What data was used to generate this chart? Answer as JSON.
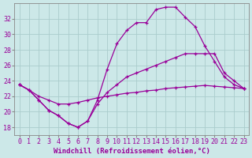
{
  "xlabel": "Windchill (Refroidissement éolien,°C)",
  "bg_color": "#cce8e8",
  "grid_color": "#aacccc",
  "line_color": "#990099",
  "x_hours": [
    0,
    1,
    2,
    3,
    4,
    5,
    6,
    7,
    8,
    9,
    10,
    11,
    12,
    13,
    14,
    15,
    16,
    17,
    18,
    19,
    20,
    21,
    22,
    23
  ],
  "curve1": [
    23.5,
    22.8,
    22.0,
    21.5,
    21.0,
    21.0,
    21.2,
    21.5,
    21.8,
    22.0,
    22.2,
    22.4,
    22.5,
    22.7,
    22.8,
    23.0,
    23.1,
    23.2,
    23.3,
    23.4,
    23.3,
    23.2,
    23.1,
    23.0
  ],
  "curve2": [
    23.5,
    22.8,
    21.5,
    20.2,
    19.5,
    18.5,
    18.0,
    18.8,
    21.5,
    25.5,
    28.8,
    30.5,
    31.5,
    31.5,
    33.2,
    33.5,
    33.5,
    32.2,
    31.0,
    28.5,
    26.5,
    24.5,
    23.5,
    23.0
  ],
  "curve3": [
    23.5,
    22.8,
    21.5,
    20.2,
    19.5,
    18.5,
    18.0,
    18.8,
    21.0,
    22.5,
    23.5,
    24.5,
    25.0,
    25.5,
    26.0,
    26.5,
    27.0,
    27.5,
    27.5,
    27.5,
    27.5,
    25.0,
    24.0,
    23.0
  ],
  "ylim": [
    17,
    34
  ],
  "yticks": [
    18,
    20,
    22,
    24,
    26,
    28,
    30,
    32
  ],
  "label_fontsize": 6.5,
  "tick_fontsize": 6.0
}
